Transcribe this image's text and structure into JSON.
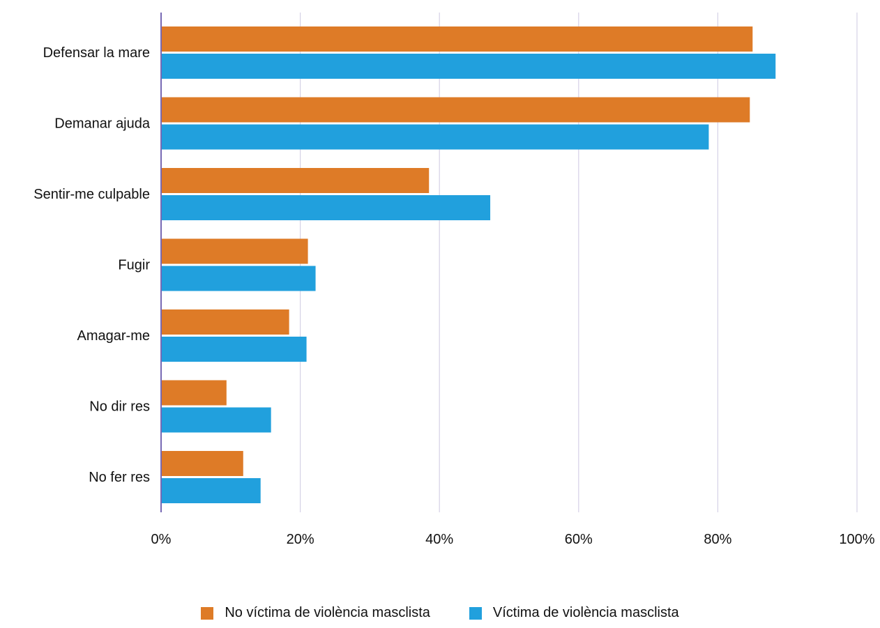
{
  "chart_data": {
    "type": "bar",
    "orientation": "horizontal",
    "categories": [
      "Defensar la mare",
      "Demanar ajuda",
      "Sentir-me culpable",
      "Fugir",
      "Amagar-me",
      "No dir res",
      "No fer res"
    ],
    "series": [
      {
        "name": "No víctima de violència masclista",
        "color": "#de7b27",
        "values": [
          85.0,
          84.6,
          38.5,
          21.1,
          18.4,
          9.4,
          11.8
        ]
      },
      {
        "name": "Víctima de violència masclista",
        "color": "#21a0dd",
        "values": [
          88.3,
          78.7,
          47.3,
          22.2,
          20.9,
          15.8,
          14.3
        ]
      }
    ],
    "xlim": [
      0,
      100
    ],
    "xticks": [
      "0%",
      "20%",
      "40%",
      "60%",
      "80%",
      "100%"
    ],
    "grid": true,
    "legend_position": "bottom",
    "colors": {
      "grid": "#d5d1e6",
      "axis": "#7769b4",
      "text": "#111111"
    }
  }
}
